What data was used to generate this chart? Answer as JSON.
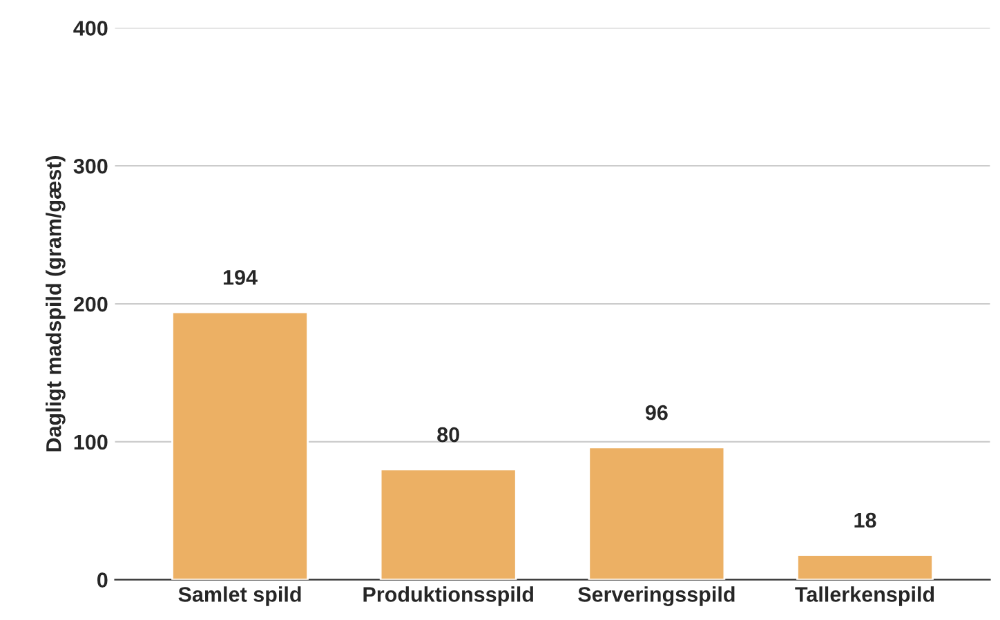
{
  "chart_data": {
    "type": "bar",
    "ylabel": "Dagligt madspild (gram/gæst)",
    "categories": [
      "Samlet spild",
      "Produktionsspild",
      "Serveringsspild",
      "Tallerkenspild"
    ],
    "values": [
      194,
      80,
      96,
      18
    ],
    "color": "#ecb064",
    "ylim": [
      0,
      400
    ],
    "yticks": [
      0,
      100,
      200,
      300,
      400
    ],
    "grid": "y",
    "data_labels": true
  }
}
